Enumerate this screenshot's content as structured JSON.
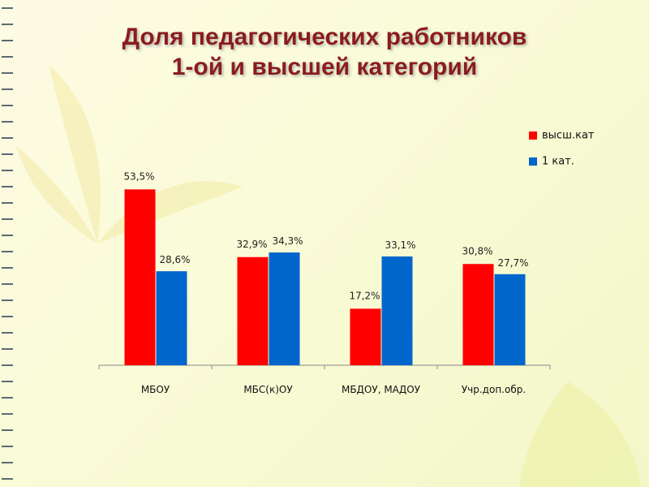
{
  "chart_data": {
    "type": "bar",
    "title": [
      "Доля педагогических работников",
      "1-ой и высшей категорий"
    ],
    "categories": [
      "МБОУ",
      "МБС(к)ОУ",
      "МБДОУ, МАДОУ",
      "Учр.доп.обр."
    ],
    "series": [
      {
        "name": "высш.кат",
        "color": "#ff0000",
        "values": [
          53.5,
          32.9,
          17.2,
          30.8
        ],
        "value_labels": [
          "53,5%",
          "32,9%",
          "17,2%",
          "30,8%"
        ]
      },
      {
        "name": "1 кат.",
        "color": "#0066cc",
        "values": [
          28.6,
          34.3,
          33.1,
          27.7
        ],
        "value_labels": [
          "28,6%",
          "34,3%",
          "33,1%",
          "27,7%"
        ]
      }
    ]
  }
}
